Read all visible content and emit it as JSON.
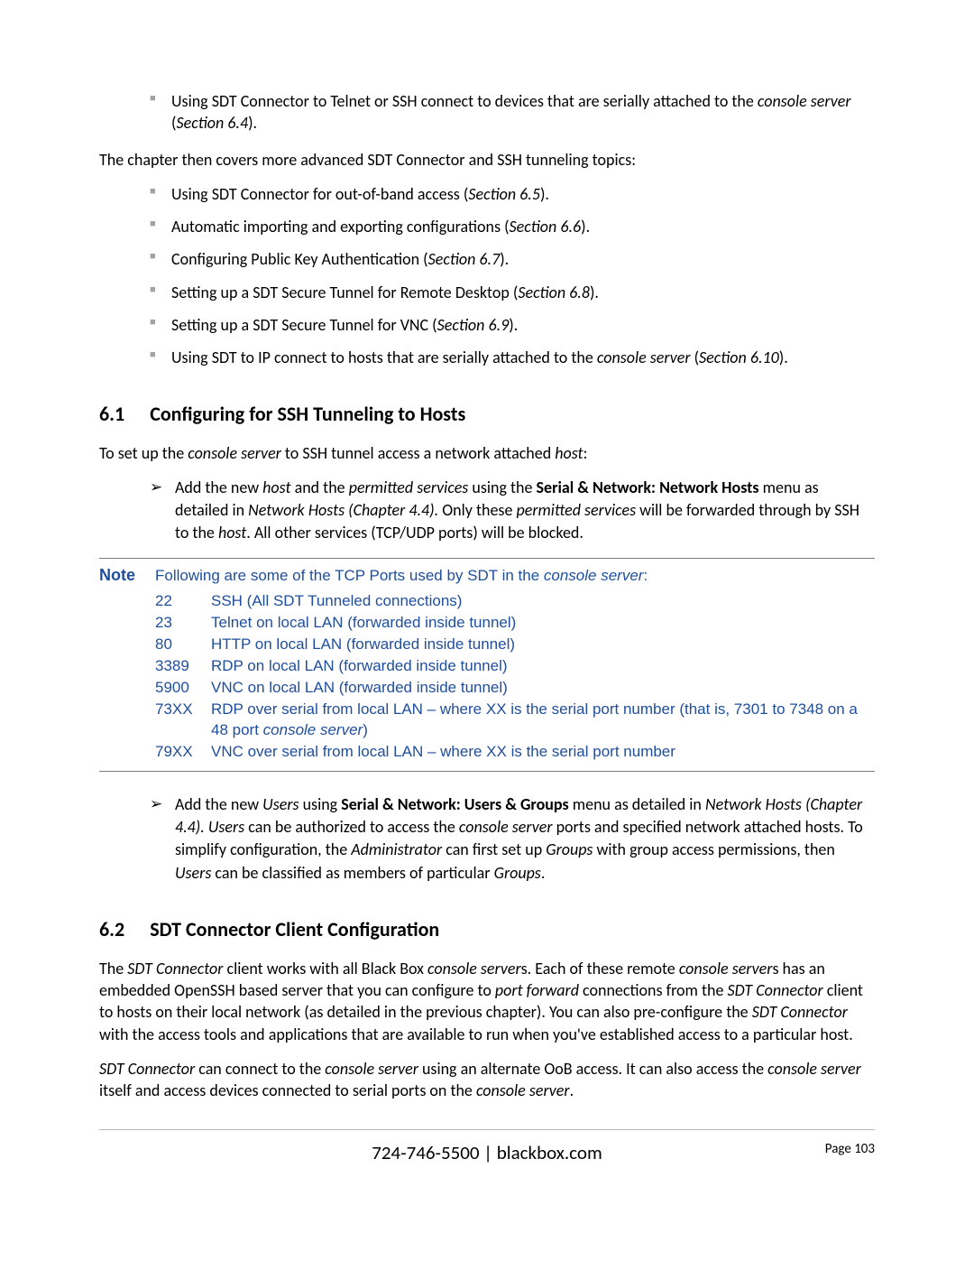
{
  "topBullets": [
    {
      "pre": "Using SDT Connector to Telnet or SSH connect to devices that are serially attached to the ",
      "it1": "console server",
      "mid": " (",
      "it2": "Section 6.4",
      "post": ")."
    }
  ],
  "midParagraph": "The chapter then covers more advanced SDT Connector and SSH tunneling topics:",
  "midBullets": [
    {
      "pre": "Using SDT Connector for out-of-band access (",
      "it": "Section 6.5",
      "post": ")."
    },
    {
      "pre": "Automatic importing and exporting configurations (",
      "it": "Section 6.6",
      "post": ")."
    },
    {
      "pre": "Configuring Public Key Authentication (",
      "it": "Section 6.7",
      "post": ")."
    },
    {
      "pre": "Setting up a SDT Secure Tunnel for Remote Desktop (",
      "it": "Section 6.8",
      "post": ")."
    },
    {
      "pre": "Setting up a SDT Secure Tunnel for VNC (",
      "it": "Section 6.9",
      "post": ")."
    },
    {
      "pre": "Using SDT to IP connect to hosts that are serially attached to the ",
      "it1": "console server",
      "mid": " (",
      "it2": "Section 6.10",
      "post": ")."
    }
  ],
  "section61": {
    "num": "6.1",
    "title": "Configuring for SSH Tunneling to Hosts"
  },
  "setupPara": {
    "pre": "To set up the ",
    "it1": "console server",
    "mid": " to SSH tunnel access a network attached ",
    "it2": "host",
    "post": ":"
  },
  "arrow1": {
    "a": "Add the new ",
    "it_host": "host",
    "b": " and the ",
    "it_ps": "permitted services",
    "c": " using the ",
    "bold_menu": "Serial & Network: Network Hosts",
    "d": " menu as detailed in ",
    "it_ref": "Network Hosts (Chapter 4.4).",
    "e": " Only these ",
    "it_ps2": "permitted services",
    "f": " will be forwarded through by SSH to the ",
    "it_host2": "host",
    "g": ". All other services (TCP/UDP ports) will be blocked."
  },
  "note": {
    "label": "Note",
    "intro_pre": "Following are some of the TCP Ports used by SDT in the ",
    "intro_it": "console server",
    "intro_post": ":",
    "ports": [
      {
        "code": "22",
        "desc_pre": "SSH (All SDT Tunneled connections)"
      },
      {
        "code": "23",
        "desc_pre": "Telnet on local LAN (forwarded inside tunnel)"
      },
      {
        "code": "80",
        "desc_pre": "HTTP on local LAN (forwarded inside tunnel)"
      },
      {
        "code": "3389",
        "desc_pre": "RDP on local LAN (forwarded inside tunnel)"
      },
      {
        "code": "5900",
        "desc_pre": "VNC on local LAN (forwarded inside tunnel)"
      },
      {
        "code": "73XX",
        "desc_pre": "RDP over serial from local LAN – where XX is the serial port number (that is, 7301 to 7348 on a 48 port ",
        "desc_it": "console server",
        "desc_post": ")"
      },
      {
        "code": "79XX",
        "desc_pre": "VNC over serial from local LAN – where XX is the serial port number"
      }
    ]
  },
  "arrow2": {
    "a": "Add the new ",
    "it_users": "Users",
    "b": " using ",
    "bold_menu": "Serial & Network: Users & Groups",
    "c": " menu as detailed in ",
    "it_ref": "Network Hosts (Chapter 4.4). Users",
    "d": " can be authorized to access the ",
    "it_cs": "console server",
    "e": " ports and specified network attached hosts. To simplify configuration, the ",
    "it_admin": "Administrator",
    "f": " can first set up ",
    "it_groups": "Groups",
    "g": " with group access permissions, then ",
    "it_users2": "Users",
    "h": " can be classified as members of particular ",
    "it_groups2": "Groups",
    "i": "."
  },
  "section62": {
    "num": "6.2",
    "title": "SDT Connector Client Configuration"
  },
  "p62a": {
    "a": "The ",
    "it1": "SDT Connector",
    "b": " client works with all Black Box ",
    "it2": "console server",
    "c": "s. Each of these remote ",
    "it3": "console server",
    "d": "s has an embedded OpenSSH based server that you can configure to ",
    "it4": "port forward",
    "e": " connections from the ",
    "it5": "SDT Connector",
    "f": " client to hosts on their local network (as detailed in the previous chapter). You can also pre-configure the ",
    "it6": "SDT Connector",
    "g": " with the access tools and applications that are available to run when you've established access to a particular host."
  },
  "p62b": {
    "a": "",
    "it1": "SDT Connector",
    "b": " can connect to the ",
    "it2": "console server",
    "c": " using an alternate OoB access. It can also access the ",
    "it3": "console server",
    "d": " itself and access devices connected to serial ports on the ",
    "it4": "console server",
    "e": "."
  },
  "footer": {
    "phone": "724-746-5500",
    "sep": " | ",
    "site": "blackbox.com",
    "page_label": "Page ",
    "page_num": "103"
  }
}
